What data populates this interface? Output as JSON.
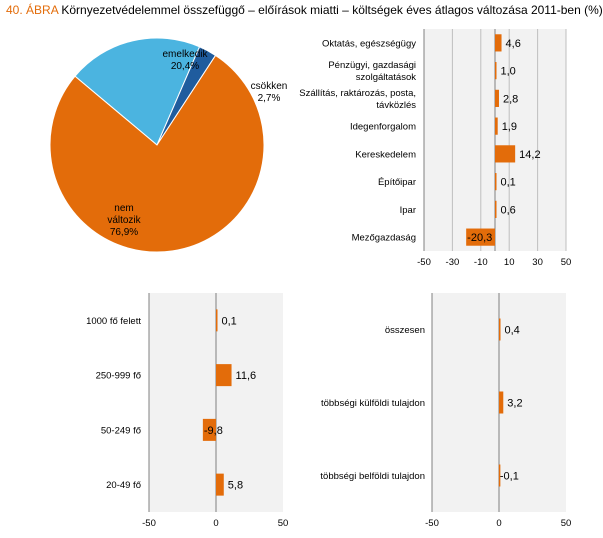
{
  "title": {
    "number": "40. ÁBRA",
    "text": "Környezetvédelemmel összefüggő – előírások miatti – költségek éves átlagos változása 2011-ben (%)"
  },
  "colors": {
    "orange": "#E36C0A",
    "lightblue": "#4BB4E0",
    "darkblue": "#1F5C9E",
    "plot_bg": "#F2F2F2",
    "grid": "#BFBFBF"
  },
  "chart_data": [
    {
      "type": "pie",
      "categories": [
        "emelkedik",
        "csökken",
        "nem változik"
      ],
      "values": [
        20.4,
        2.7,
        76.9
      ],
      "labels": [
        "emelkedik\n20,4%",
        "csökken\n2,7%",
        "nem\nváltozik\n76,9%"
      ],
      "colors": [
        "#4BB4E0",
        "#1F5C9E",
        "#E36C0A"
      ]
    },
    {
      "type": "bar",
      "orientation": "horizontal",
      "categories": [
        "Oktatás, egészségügy",
        "Pénzügyi, gazdasági\nszolgáltatások",
        "Szállítás, raktározás, posta,\ntávközlés",
        "Idegenforgalom",
        "Kereskedelem",
        "Építőipar",
        "Ipar",
        "Mezőgazdaság"
      ],
      "values": [
        4.6,
        1.0,
        2.8,
        1.9,
        14.2,
        0.1,
        0.6,
        -20.3
      ],
      "value_labels": [
        "4,6",
        "1,0",
        "2,8",
        "1,9",
        "14,2",
        "0,1",
        "0,6",
        "-20,3"
      ],
      "xlim": [
        -50,
        50
      ],
      "xticks": [
        -50,
        -30,
        -10,
        10,
        30,
        50
      ],
      "grid": true
    },
    {
      "type": "bar",
      "orientation": "horizontal",
      "categories": [
        "1000 fő felett",
        "250-999 fő",
        "50-249 fő",
        "20-49 fő"
      ],
      "values": [
        0.1,
        11.6,
        -9.8,
        5.8
      ],
      "value_labels": [
        "0,1",
        "11,6",
        "-9,8",
        "5,8"
      ],
      "xlim": [
        -50,
        50
      ],
      "xticks": [
        -50,
        0,
        50
      ],
      "grid": false
    },
    {
      "type": "bar",
      "orientation": "horizontal",
      "categories": [
        "összesen",
        "többségi külföldi tulajdon",
        "többségi belföldi tulajdon"
      ],
      "values": [
        0.4,
        3.2,
        -0.1
      ],
      "value_labels": [
        "0,4",
        "3,2",
        "-0,1"
      ],
      "xlim": [
        -50,
        50
      ],
      "xticks": [
        -50,
        0,
        50
      ],
      "grid": false
    }
  ]
}
